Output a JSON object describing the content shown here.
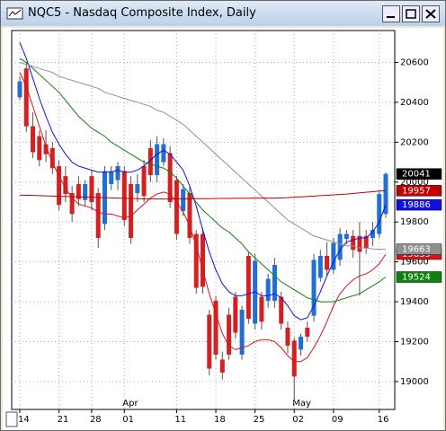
{
  "window": {
    "title": "NQC5 - Nasdaq Composite Index, Daily"
  },
  "chart_data": {
    "type": "candlestick",
    "categories": [
      "14",
      null,
      null,
      null,
      null,
      null,
      "21",
      null,
      null,
      null,
      null,
      "28",
      null,
      null,
      null,
      null,
      "01",
      null,
      null,
      null,
      null,
      null,
      null,
      null,
      "11",
      null,
      null,
      null,
      null,
      null,
      "18",
      null,
      null,
      null,
      null,
      null,
      "25",
      null,
      null,
      null,
      null,
      null,
      "02",
      null,
      null,
      null,
      null,
      null,
      "09",
      null,
      null,
      null,
      null,
      null,
      null,
      "16",
      null
    ],
    "months": [
      null,
      null,
      null,
      null,
      null,
      null,
      null,
      null,
      null,
      null,
      null,
      null,
      null,
      null,
      null,
      null,
      "Apr",
      null,
      null,
      null,
      null,
      null,
      null,
      null,
      null,
      null,
      null,
      null,
      null,
      null,
      null,
      null,
      null,
      null,
      null,
      null,
      null,
      null,
      null,
      null,
      null,
      null,
      "May",
      null,
      null,
      null,
      null,
      null,
      null,
      null,
      null,
      null,
      null,
      null,
      null,
      null,
      null
    ],
    "open": [
      20425,
      20570,
      20280,
      20230,
      20190,
      20170,
      20080,
      20030,
      19945,
      19990,
      19910,
      20030,
      19945,
      19790,
      19990,
      20010,
      20055,
      19990,
      19945,
      20080,
      20170,
      20035,
      20100,
      20145,
      20010,
      19855,
      19945,
      19740,
      19740,
      19335,
      19405,
      19110,
      19335,
      19425,
      19135,
      19630,
      19290,
      19425,
      19405,
      19405,
      19425,
      19270,
      19205,
      19160,
      19270,
      19330,
      19520,
      19630,
      19560,
      19610,
      19715,
      19730,
      19730,
      19730,
      19720,
      19740,
      19840
    ],
    "high": [
      20530,
      20600,
      20350,
      20260,
      20260,
      20200,
      20110,
      20080,
      19980,
      20030,
      20010,
      20060,
      19970,
      20080,
      20080,
      20100,
      20080,
      20030,
      20040,
      20110,
      20210,
      20230,
      20220,
      20180,
      20030,
      19990,
      19975,
      19760,
      19770,
      19360,
      19430,
      19150,
      19370,
      19450,
      19380,
      19650,
      19640,
      19450,
      19540,
      19620,
      19450,
      19300,
      19220,
      19240,
      19300,
      19640,
      19660,
      19700,
      19720,
      19770,
      19760,
      19760,
      19800,
      19760,
      19800,
      19960,
      20050
    ],
    "low": [
      20410,
      20250,
      20120,
      20080,
      20100,
      20040,
      19860,
      19900,
      19800,
      19880,
      19880,
      19860,
      19670,
      19760,
      19960,
      19960,
      19780,
      19690,
      19900,
      19900,
      20000,
      20000,
      20080,
      19870,
      19710,
      19830,
      19690,
      19440,
      19440,
      19030,
      19110,
      19010,
      19110,
      19215,
      19110,
      19290,
      19260,
      19260,
      19370,
      19370,
      19260,
      19140,
      18900,
      19130,
      19200,
      19300,
      19500,
      19530,
      19540,
      19580,
      19690,
      19620,
      19430,
      19640,
      19680,
      19720,
      19820
    ],
    "close": [
      20505,
      20280,
      20150,
      20110,
      20140,
      20070,
      19885,
      19940,
      19840,
      19915,
      19990,
      19900,
      19720,
      20055,
      20055,
      20080,
      19810,
      19720,
      19990,
      19930,
      20035,
      20190,
      20190,
      19900,
      19740,
      19965,
      19720,
      19470,
      19475,
      19065,
      19135,
      19045,
      19135,
      19245,
      19360,
      19315,
      19605,
      19300,
      19515,
      19585,
      19290,
      19180,
      19025,
      19225,
      19225,
      19610,
      19630,
      19560,
      19695,
      19740,
      19740,
      19660,
      19650,
      19670,
      19760,
      19940,
      20041
    ],
    "up_color": "#1f6fd6",
    "down_color": "#d42020",
    "series": [
      {
        "color": "#1010e0",
        "values": [
          20700,
          20620,
          20520,
          20420,
          20330,
          20250,
          20190,
          20140,
          20100,
          20080,
          20070,
          20060,
          20050,
          20050,
          20050,
          20060,
          20050,
          20050,
          20060,
          20080,
          20110,
          20140,
          20160,
          20140,
          20100,
          20060,
          19980,
          19880,
          19760,
          19650,
          19560,
          19490,
          19450,
          19430,
          19430,
          19440,
          19450,
          19430,
          19430,
          19440,
          19420,
          19380,
          19330,
          19310,
          19320,
          19380,
          19450,
          19530,
          19600,
          19660,
          19700,
          19710,
          19720,
          19720,
          19750,
          19800,
          19886
        ]
      },
      {
        "color": "#e01010",
        "values": [
          20550,
          20480,
          20380,
          20280,
          20180,
          20100,
          20030,
          19970,
          19920,
          19890,
          19880,
          19870,
          19850,
          19840,
          19840,
          19830,
          19820,
          19830,
          19860,
          19890,
          19920,
          19940,
          19950,
          19940,
          19900,
          19850,
          19780,
          19680,
          19560,
          19440,
          19340,
          19240,
          19180,
          19160,
          19170,
          19180,
          19200,
          19210,
          19210,
          19200,
          19170,
          19130,
          19100,
          19100,
          19120,
          19170,
          19230,
          19300,
          19380,
          19440,
          19480,
          19510,
          19530,
          19540,
          19560,
          19590,
          19639
        ]
      },
      {
        "color": "#108010",
        "values": [
          20620,
          20600,
          20570,
          20540,
          20510,
          20480,
          20450,
          20410,
          20370,
          20330,
          20300,
          20270,
          20250,
          20230,
          20200,
          20180,
          20160,
          20140,
          20120,
          20100,
          20090,
          20080,
          20070,
          20050,
          20020,
          19980,
          19940,
          19900,
          19860,
          19830,
          19800,
          19770,
          19750,
          19720,
          19690,
          19650,
          19620,
          19590,
          19560,
          19530,
          19500,
          19480,
          19460,
          19440,
          19420,
          19410,
          19400,
          19400,
          19400,
          19410,
          19420,
          19430,
          19440,
          19460,
          19480,
          19500,
          19524
        ]
      },
      {
        "color": "#909090",
        "values": [
          20600,
          20590,
          20580,
          20570,
          20560,
          20550,
          20530,
          20520,
          20510,
          20500,
          20490,
          20480,
          20470,
          20450,
          20440,
          20430,
          20420,
          20410,
          20400,
          20390,
          20380,
          20360,
          20350,
          20330,
          20310,
          20290,
          20260,
          20230,
          20200,
          20170,
          20140,
          20110,
          20080,
          20050,
          20020,
          19990,
          19960,
          19930,
          19900,
          19870,
          19840,
          19810,
          19790,
          19770,
          19750,
          19730,
          19720,
          19710,
          19700,
          19690,
          19680,
          19680,
          19670,
          19670,
          19665,
          19663,
          19663
        ]
      },
      {
        "color": "#c00000",
        "values": [
          19935,
          19934,
          19933,
          19932,
          19931,
          19930,
          19929,
          19928,
          19927,
          19926,
          19925,
          19924,
          19923,
          19922,
          19921,
          19920,
          19919,
          19918,
          19917,
          19916,
          19915,
          19915,
          19915,
          19915,
          19916,
          19916,
          19916,
          19917,
          19917,
          19917,
          19918,
          19918,
          19918,
          19919,
          19919,
          19919,
          19920,
          19920,
          19920,
          19920,
          19921,
          19922,
          19924,
          19926,
          19928,
          19930,
          19932,
          19934,
          19936,
          19938,
          19940,
          19943,
          19946,
          19949,
          19952,
          19955,
          19957
        ]
      }
    ],
    "ylim": [
      18860,
      20760
    ],
    "yticks": [
      19000,
      19200,
      19400,
      19600,
      19800,
      20000,
      20200,
      20400,
      20600
    ],
    "grid": true
  }
}
